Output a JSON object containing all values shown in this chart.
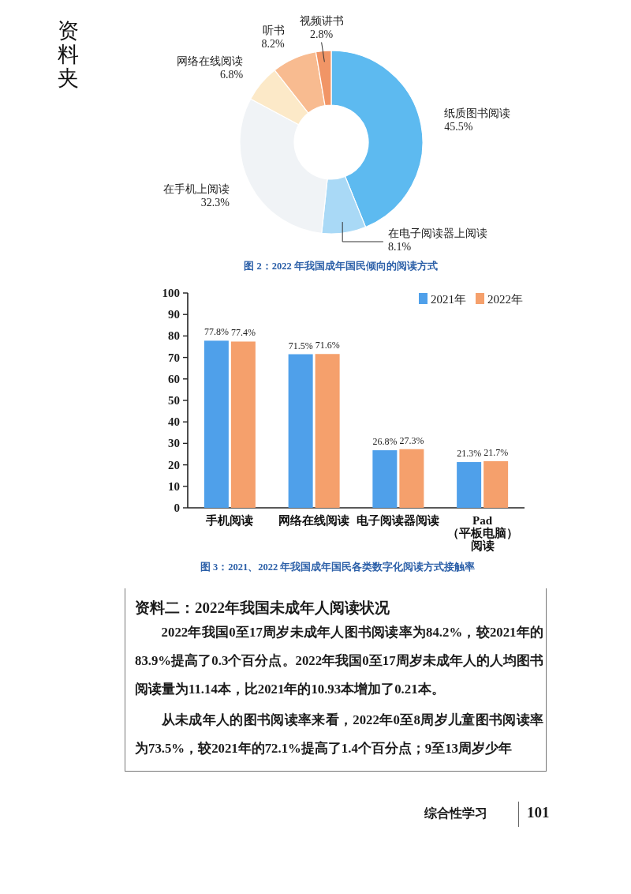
{
  "chart_data": [
    {
      "type": "donut",
      "title": "图 2：2022 年我国成年国民倾向的阅读方式",
      "categories": [
        "纸质图书阅读",
        "在电子阅读器上阅读",
        "在手机上阅读",
        "网络在线阅读",
        "听书",
        "视频讲书"
      ],
      "values": [
        45.5,
        8.1,
        32.3,
        6.8,
        8.2,
        2.8
      ],
      "value_labels": [
        "45.5%",
        "8.1%",
        "32.3%",
        "6.8%",
        "8.2%",
        "2.8%"
      ],
      "colors": [
        "#5dbaf0",
        "#a9d9f6",
        "#f0f3f6",
        "#fce9c8",
        "#f8bb90",
        "#f19566"
      ],
      "annotations": [
        "资料夹"
      ]
    },
    {
      "type": "bar",
      "title": "图 3：2021、2022 年我国成年国民各类数字化阅读方式接触率",
      "categories": [
        "手机阅读",
        "网络在线阅读",
        "电子阅读器阅读",
        "Pad（平板电脑）阅读"
      ],
      "series": [
        {
          "name": "2021年",
          "color": "#4fa0ea",
          "values": [
            77.8,
            71.5,
            26.8,
            21.3
          ],
          "value_labels": [
            "77.8%",
            "71.5%",
            "26.8%",
            "21.3%"
          ]
        },
        {
          "name": "2022年",
          "color": "#f5a06c",
          "values": [
            77.4,
            71.6,
            27.3,
            21.7
          ],
          "value_labels": [
            "77.4%",
            "71.6%",
            "27.3%",
            "21.7%"
          ]
        }
      ],
      "ylim": [
        0,
        100
      ],
      "yticks": [
        0,
        10,
        20,
        30,
        40,
        50,
        60,
        70,
        80,
        90,
        100
      ],
      "legend": "top right"
    },
    {
      "type": "other",
      "title": "资料二：2022年我国未成年人阅读状况",
      "annotations": [
        "2022年我国0至17周岁未成年人图书阅读率为84.2%，较2021年的83.9%提高了0.3个百分点。2022年我国0至17周岁未成年人的人均图书阅读量为11.14本，比2021年的10.93本增加了0.21本。",
        "从未成年人的图书阅读率来看，2022年0至8周岁儿童图书阅读率为73.5%，较2021年的72.1%提高了1.4个百分点；9至13周岁少年",
        "综合性学习",
        "101"
      ]
    }
  ]
}
